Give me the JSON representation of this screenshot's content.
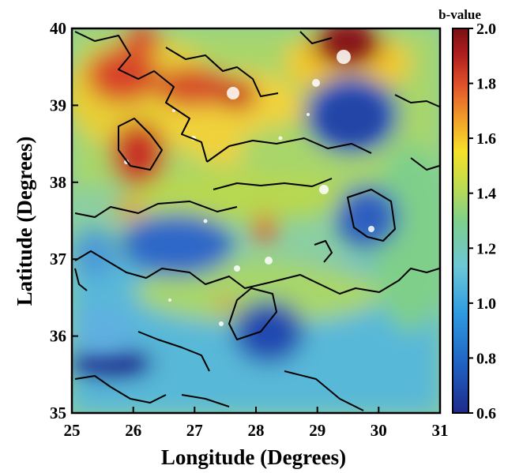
{
  "map": {
    "x_axis_label": "Longitude (Degrees)",
    "y_axis_label": "Latitude (Degrees)",
    "x_ticks": [
      "25",
      "26",
      "27",
      "28",
      "29",
      "30",
      "31"
    ],
    "y_ticks": [
      "40",
      "39",
      "38",
      "37",
      "36",
      "35"
    ],
    "x_range": [
      25,
      31
    ],
    "y_range": [
      35,
      40
    ]
  },
  "colorbar": {
    "title": "b-value",
    "ticks": [
      "2.0",
      "1.8",
      "1.6",
      "1.4",
      "1.2",
      "1.0",
      "0.8",
      "0.6"
    ],
    "range": [
      0.6,
      2.0
    ],
    "colors": [
      "#1f2a8a",
      "#1f5fc0",
      "#2f9be0",
      "#6cc7d6",
      "#7fcf8a",
      "#c5dc4a",
      "#f5e12a",
      "#f2a22a",
      "#e2542a",
      "#b11f1f",
      "#7a0f12"
    ]
  }
}
